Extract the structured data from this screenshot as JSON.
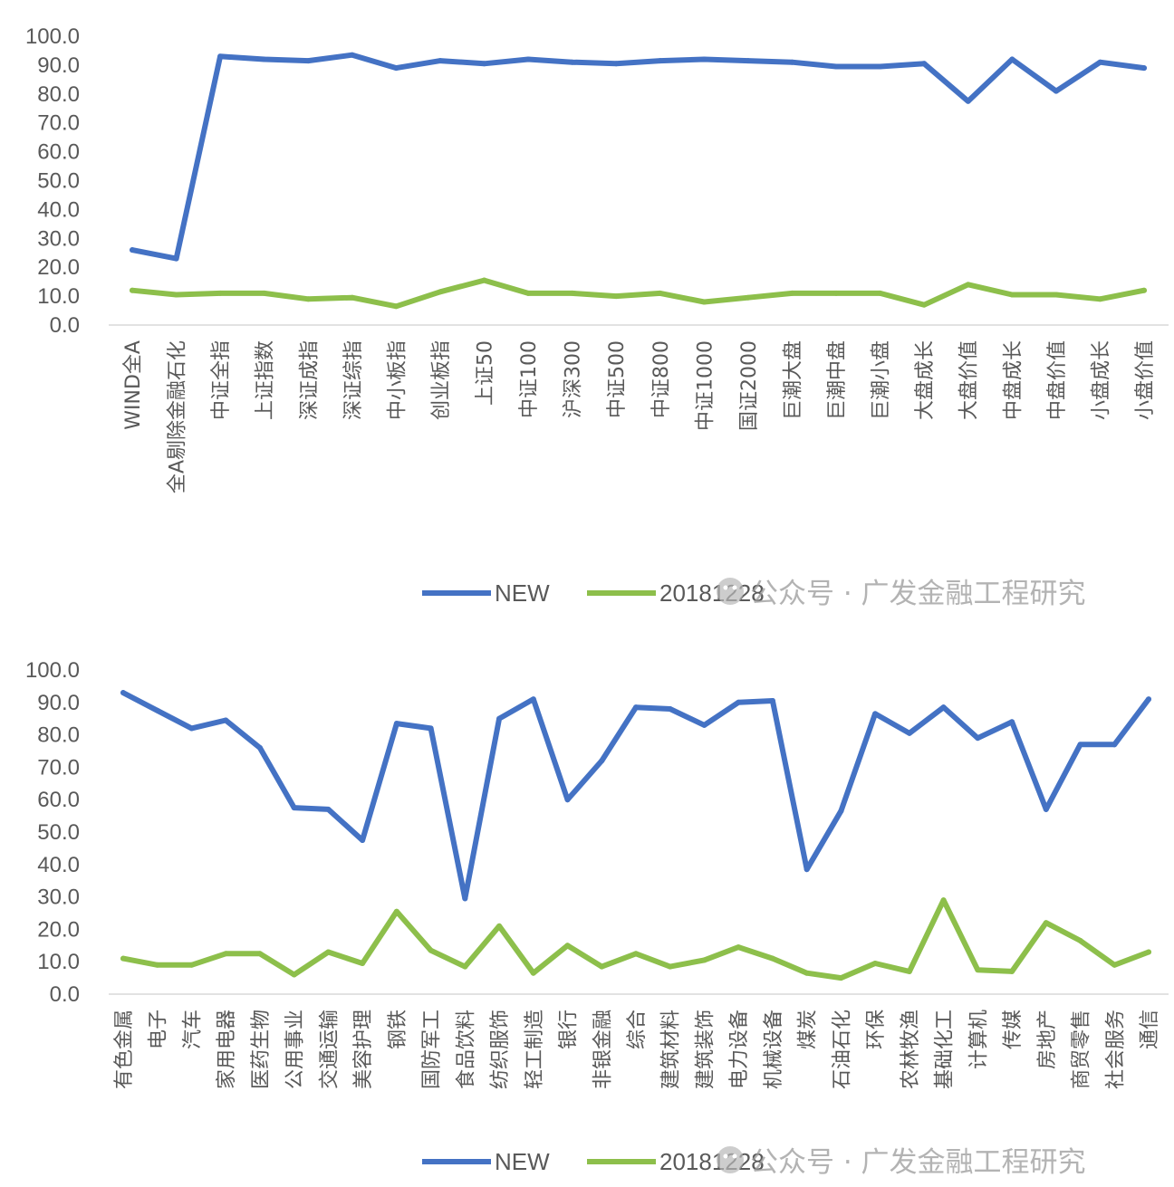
{
  "watermark": "公众号 · 广发金融工程研究",
  "colors": {
    "new": "#4472C4",
    "old": "#8DBF4B",
    "axis": "#D9D9D9",
    "text": "#595959"
  },
  "chart_data": [
    {
      "type": "line",
      "title": "",
      "xlabel": "",
      "ylabel": "",
      "ylim": [
        0,
        100
      ],
      "yticks": [
        "0.0",
        "10.0",
        "20.0",
        "30.0",
        "40.0",
        "50.0",
        "60.0",
        "70.0",
        "80.0",
        "90.0",
        "100.0"
      ],
      "grid": false,
      "legend_position": "bottom",
      "categories": [
        "WIND全A",
        "全A剔除金融石化",
        "中证全指",
        "上证指数",
        "深证成指",
        "深证综指",
        "中小板指",
        "创业板指",
        "上证50",
        "中证100",
        "沪深300",
        "中证500",
        "中证800",
        "中证1000",
        "国证2000",
        "巨潮大盘",
        "巨潮中盘",
        "巨潮小盘",
        "大盘成长",
        "大盘价值",
        "中盘成长",
        "中盘价值",
        "小盘成长",
        "小盘价值"
      ],
      "series": [
        {
          "name": "NEW",
          "values": [
            26.0,
            23.0,
            93.0,
            92.0,
            91.5,
            93.5,
            89.0,
            91.5,
            90.5,
            92.0,
            91.0,
            90.5,
            91.5,
            92.0,
            91.5,
            91.0,
            89.5,
            89.5,
            90.5,
            77.5,
            92.0,
            81.0,
            91.0,
            89.0
          ]
        },
        {
          "name": "20181228",
          "values": [
            12.0,
            10.5,
            11.0,
            11.0,
            9.0,
            9.5,
            6.5,
            11.5,
            15.5,
            11.0,
            11.0,
            10.0,
            11.0,
            8.0,
            9.5,
            11.0,
            11.0,
            11.0,
            7.0,
            14.0,
            10.5,
            10.5,
            9.0,
            12.0
          ]
        }
      ]
    },
    {
      "type": "line",
      "title": "",
      "xlabel": "",
      "ylabel": "",
      "ylim": [
        0,
        100
      ],
      "yticks": [
        "0.0",
        "10.0",
        "20.0",
        "30.0",
        "40.0",
        "50.0",
        "60.0",
        "70.0",
        "80.0",
        "90.0",
        "100.0"
      ],
      "grid": false,
      "legend_position": "bottom",
      "categories": [
        "有色金属",
        "电子",
        "汽车",
        "家用电器",
        "医药生物",
        "公用事业",
        "交通运输",
        "美容护理",
        "钢铁",
        "国防军工",
        "食品饮料",
        "纺织服饰",
        "轻工制造",
        "银行",
        "非银金融",
        "综合",
        "建筑材料",
        "建筑装饰",
        "电力设备",
        "机械设备",
        "煤炭",
        "石油石化",
        "环保",
        "农林牧渔",
        "基础化工",
        "计算机",
        "传媒",
        "房地产",
        "商贸零售",
        "社会服务",
        "通信"
      ],
      "series": [
        {
          "name": "NEW",
          "values": [
            93.0,
            87.5,
            82.0,
            84.5,
            76.0,
            57.5,
            57.0,
            47.5,
            83.5,
            82.0,
            29.5,
            85.0,
            91.0,
            60.0,
            72.0,
            88.5,
            88.0,
            83.0,
            90.0,
            90.5,
            38.5,
            56.5,
            86.5,
            80.5,
            88.5,
            79.0,
            84.0,
            57.0,
            77.0,
            77.0,
            91.0
          ]
        },
        {
          "name": "20181228",
          "values": [
            11.0,
            9.0,
            9.0,
            12.5,
            12.5,
            6.0,
            13.0,
            9.5,
            25.5,
            13.5,
            8.5,
            21.0,
            6.5,
            15.0,
            8.5,
            12.5,
            8.5,
            10.5,
            14.5,
            11.0,
            6.5,
            5.0,
            9.5,
            7.0,
            29.0,
            7.5,
            7.0,
            22.0,
            16.5,
            9.0,
            13.0
          ]
        }
      ]
    }
  ]
}
